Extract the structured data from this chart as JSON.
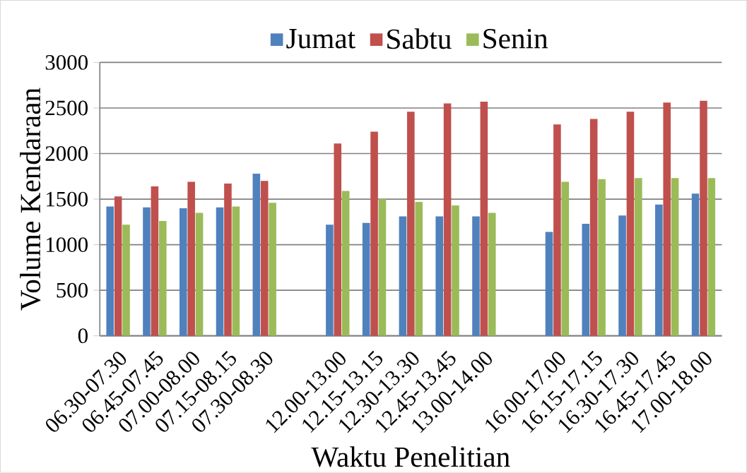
{
  "chart_data": {
    "type": "bar",
    "xlabel": "Waktu Penelitian",
    "ylabel": "Volume Kendaraan",
    "categories": [
      "06.30-07.30",
      "06.45-07.45",
      "07.00-08.00",
      "07.15-08.15",
      "07.30-08.30",
      null,
      "12.00-13.00",
      "12.15-13.15",
      "12.30-13.30",
      "12.45-13.45",
      "13.00-14.00",
      null,
      "16.00-17.00",
      "16.15-17.15",
      "16.30-17.30",
      "16.45-17.45",
      "17.00-18.00"
    ],
    "series": [
      {
        "name": "Jumat",
        "color": "#4f81bd",
        "values": [
          1420,
          1410,
          1400,
          1410,
          1780,
          null,
          1220,
          1240,
          1310,
          1310,
          1310,
          null,
          1140,
          1230,
          1320,
          1440,
          1560
        ]
      },
      {
        "name": "Sabtu",
        "color": "#c0504d",
        "values": [
          1530,
          1640,
          1690,
          1670,
          1700,
          null,
          2110,
          2240,
          2460,
          2550,
          2570,
          null,
          2320,
          2380,
          2460,
          2560,
          2580
        ]
      },
      {
        "name": "Senin",
        "color": "#9bbb59",
        "values": [
          1220,
          1260,
          1350,
          1420,
          1460,
          null,
          1590,
          1500,
          1470,
          1430,
          1350,
          null,
          1690,
          1720,
          1730,
          1730,
          1730
        ]
      }
    ],
    "ylim": [
      0,
      3000
    ],
    "yticks": [
      0,
      500,
      1000,
      1500,
      2000,
      2500,
      3000
    ],
    "grid": "y",
    "legend": "top"
  }
}
